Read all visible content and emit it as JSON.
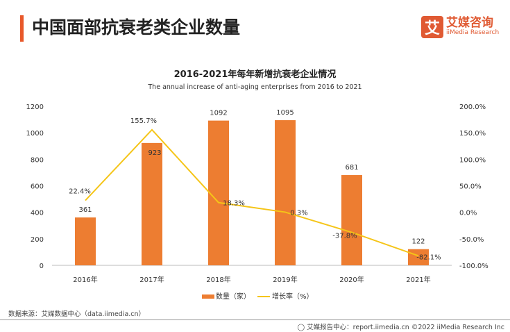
{
  "header": {
    "title": "中国面部抗衰老类企业数量",
    "logo_mark": "艾",
    "logo_cn": "艾媒咨询",
    "logo_en": "iiMedia Research"
  },
  "chart_data": {
    "type": "bar",
    "title": "2016-2021年每年新增抗衰老企业情况",
    "subtitle": "The annual increase of anti-aging enterprises from 2016 to 2021",
    "categories": [
      "2016年",
      "2017年",
      "2018年",
      "2019年",
      "2020年",
      "2021年"
    ],
    "series": [
      {
        "name": "数量（家）",
        "type": "bar",
        "axis": "left",
        "values": [
          361,
          923,
          1092,
          1095,
          681,
          122
        ],
        "labels": [
          "361",
          "923",
          "1092",
          "1095",
          "681",
          "122"
        ],
        "color": "#ed7d31"
      },
      {
        "name": "增长率（%）",
        "type": "line",
        "axis": "right",
        "values": [
          22.4,
          155.7,
          18.3,
          0.3,
          -37.8,
          -82.1
        ],
        "labels": [
          "22.4%",
          "155.7%",
          "18.3%",
          "0.3%",
          "-37.8%",
          "-82.1%"
        ],
        "color": "#f5c518"
      }
    ],
    "left_axis": {
      "ylim": [
        0,
        1200
      ],
      "ticks": [
        "0",
        "200",
        "400",
        "600",
        "800",
        "1000",
        "1200"
      ]
    },
    "right_axis": {
      "ylim": [
        -100,
        200
      ],
      "ticks": [
        "-100.0%",
        "-50.0%",
        "0.0%",
        "50.0%",
        "100.0%",
        "150.0%",
        "200.0%"
      ]
    },
    "grid": false,
    "legend": "bottom"
  },
  "footer": {
    "source": "数据来源：艾媒数据中心（data.iimedia.cn）",
    "copyright": "艾媒报告中心：report.iimedia.cn  ©2022  iiMedia Research  Inc"
  }
}
